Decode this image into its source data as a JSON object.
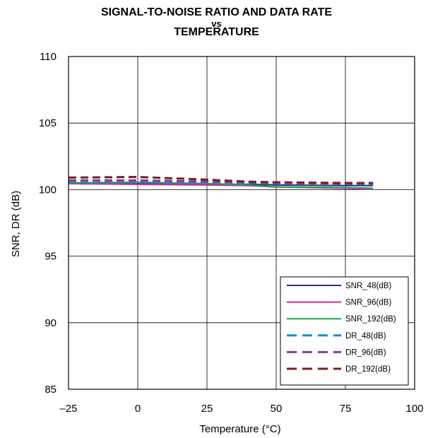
{
  "chart_data": {
    "type": "line",
    "title_line1": "SIGNAL-TO-NOISE RATIO AND DATA RATE",
    "title_line2": "vs",
    "title_line3": "TEMPERATURE",
    "xlabel": "Temperature (°C)",
    "ylabel": "SNR, DR (dB)",
    "xlim": [
      -25,
      100
    ],
    "ylim": [
      85,
      110
    ],
    "xticks": [
      -25,
      0,
      25,
      50,
      75,
      100
    ],
    "xtick_labels": [
      "–25",
      "0",
      "25",
      "50",
      "75",
      "100"
    ],
    "yticks": [
      85,
      90,
      95,
      100,
      105,
      110
    ],
    "ytick_labels": [
      "85",
      "90",
      "95",
      "100",
      "105",
      "110"
    ],
    "grid": true,
    "legend_position": "bottom-right",
    "series": [
      {
        "name": "SNR_48(dB)",
        "color": "#2b2f8f",
        "dash": false,
        "x": [
          -25,
          0,
          25,
          40,
          50,
          75,
          85
        ],
        "y": [
          100.5,
          100.5,
          100.4,
          100.4,
          100.35,
          100.3,
          100.3
        ]
      },
      {
        "name": "SNR_96(dB)",
        "color": "#e0218a",
        "dash": false,
        "x": [
          -25,
          0,
          25,
          40,
          50,
          75,
          85
        ],
        "y": [
          100.45,
          100.4,
          100.35,
          100.3,
          100.2,
          100.1,
          100.05
        ]
      },
      {
        "name": "SNR_192(dB)",
        "color": "#1aa352",
        "dash": false,
        "x": [
          -25,
          0,
          25,
          40,
          50,
          75,
          85
        ],
        "y": [
          100.5,
          100.55,
          100.45,
          100.35,
          100.2,
          100.15,
          100.1
        ]
      },
      {
        "name": "DR_48(dB)",
        "color": "#1a8fc4",
        "dash": true,
        "x": [
          -25,
          0,
          25,
          40,
          50,
          75,
          85
        ],
        "y": [
          100.6,
          100.6,
          100.5,
          100.5,
          100.55,
          100.45,
          100.4
        ]
      },
      {
        "name": "DR_96(dB)",
        "color": "#8b3aa0",
        "dash": true,
        "x": [
          -25,
          0,
          25,
          40,
          50,
          75,
          85
        ],
        "y": [
          100.7,
          100.7,
          100.6,
          100.55,
          100.5,
          100.45,
          100.45
        ]
      },
      {
        "name": "DR_192(dB)",
        "color": "#7b1f1f",
        "dash": true,
        "x": [
          -25,
          0,
          25,
          40,
          50,
          75,
          85
        ],
        "y": [
          100.9,
          100.95,
          100.75,
          100.6,
          100.55,
          100.5,
          100.5
        ]
      }
    ]
  }
}
